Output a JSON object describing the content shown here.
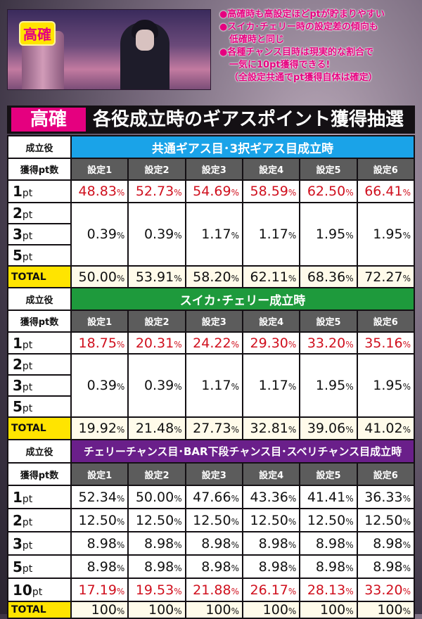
{
  "scene": {
    "badge": "高確"
  },
  "notes": [
    "●高確時も高設定ほどptが貯まりやすい",
    "●スイカ･チェリー時の設定差の傾向も",
    "低確時と同じ",
    "●各種チャンス目時は現実的な割合で",
    "一気に10pt獲得できる!",
    "（全設定共通でpt獲得自体は確定）"
  ],
  "title": {
    "badge": "高確",
    "text": "各役成立時のギアスポイント獲得抽選"
  },
  "colors": {
    "pink": "#e5007f",
    "blue": "#1aa3e8",
    "green": "#1e9a3c",
    "purple": "#6a1f8a",
    "red": "#d0101e",
    "yellow": "#ffe400"
  },
  "labels": {
    "role": "成立役",
    "pts": "獲得pt数",
    "total": "TOTAL",
    "pct": "%",
    "pt": "pt"
  },
  "settings": [
    "設定1",
    "設定2",
    "設定3",
    "設定4",
    "設定5",
    "設定6"
  ],
  "sections": [
    {
      "header": "共通ギアス目･3択ギアス目成立時",
      "color": "#1aa3e8",
      "rows": [
        {
          "n": "1",
          "values": [
            "48.83",
            "52.73",
            "54.69",
            "58.59",
            "62.50",
            "66.41"
          ],
          "red": true
        }
      ],
      "merged": {
        "labels": [
          "2",
          "3",
          "5"
        ],
        "values": [
          "0.39",
          "0.39",
          "1.17",
          "1.17",
          "1.95",
          "1.95"
        ]
      },
      "total": [
        "50.00",
        "53.91",
        "58.20",
        "62.11",
        "68.36",
        "72.27"
      ]
    },
    {
      "header": "スイカ･チェリー成立時",
      "color": "#1e9a3c",
      "rows": [
        {
          "n": "1",
          "values": [
            "18.75",
            "20.31",
            "24.22",
            "29.30",
            "33.20",
            "35.16"
          ],
          "red": true
        }
      ],
      "merged": {
        "labels": [
          "2",
          "3",
          "5"
        ],
        "values": [
          "0.39",
          "0.39",
          "1.17",
          "1.17",
          "1.95",
          "1.95"
        ]
      },
      "total": [
        "19.92",
        "21.48",
        "27.73",
        "32.81",
        "39.06",
        "41.02"
      ]
    },
    {
      "header": "チェリーチャンス目･BAR下段チャンス目･スベリチャンス目成立時",
      "color": "#6a1f8a",
      "rows": [
        {
          "n": "1",
          "values": [
            "52.34",
            "50.00",
            "47.66",
            "43.36",
            "41.41",
            "36.33"
          ],
          "red": false
        },
        {
          "n": "2",
          "values": [
            "12.50",
            "12.50",
            "12.50",
            "12.50",
            "12.50",
            "12.50"
          ],
          "red": false
        },
        {
          "n": "3",
          "values": [
            "8.98",
            "8.98",
            "8.98",
            "8.98",
            "8.98",
            "8.98"
          ],
          "red": false
        },
        {
          "n": "5",
          "values": [
            "8.98",
            "8.98",
            "8.98",
            "8.98",
            "8.98",
            "8.98"
          ],
          "red": false
        },
        {
          "n": "10",
          "values": [
            "17.19",
            "19.53",
            "21.88",
            "26.17",
            "28.13",
            "33.20"
          ],
          "red": true
        }
      ],
      "total": [
        "100",
        "100",
        "100",
        "100",
        "100",
        "100"
      ]
    }
  ]
}
